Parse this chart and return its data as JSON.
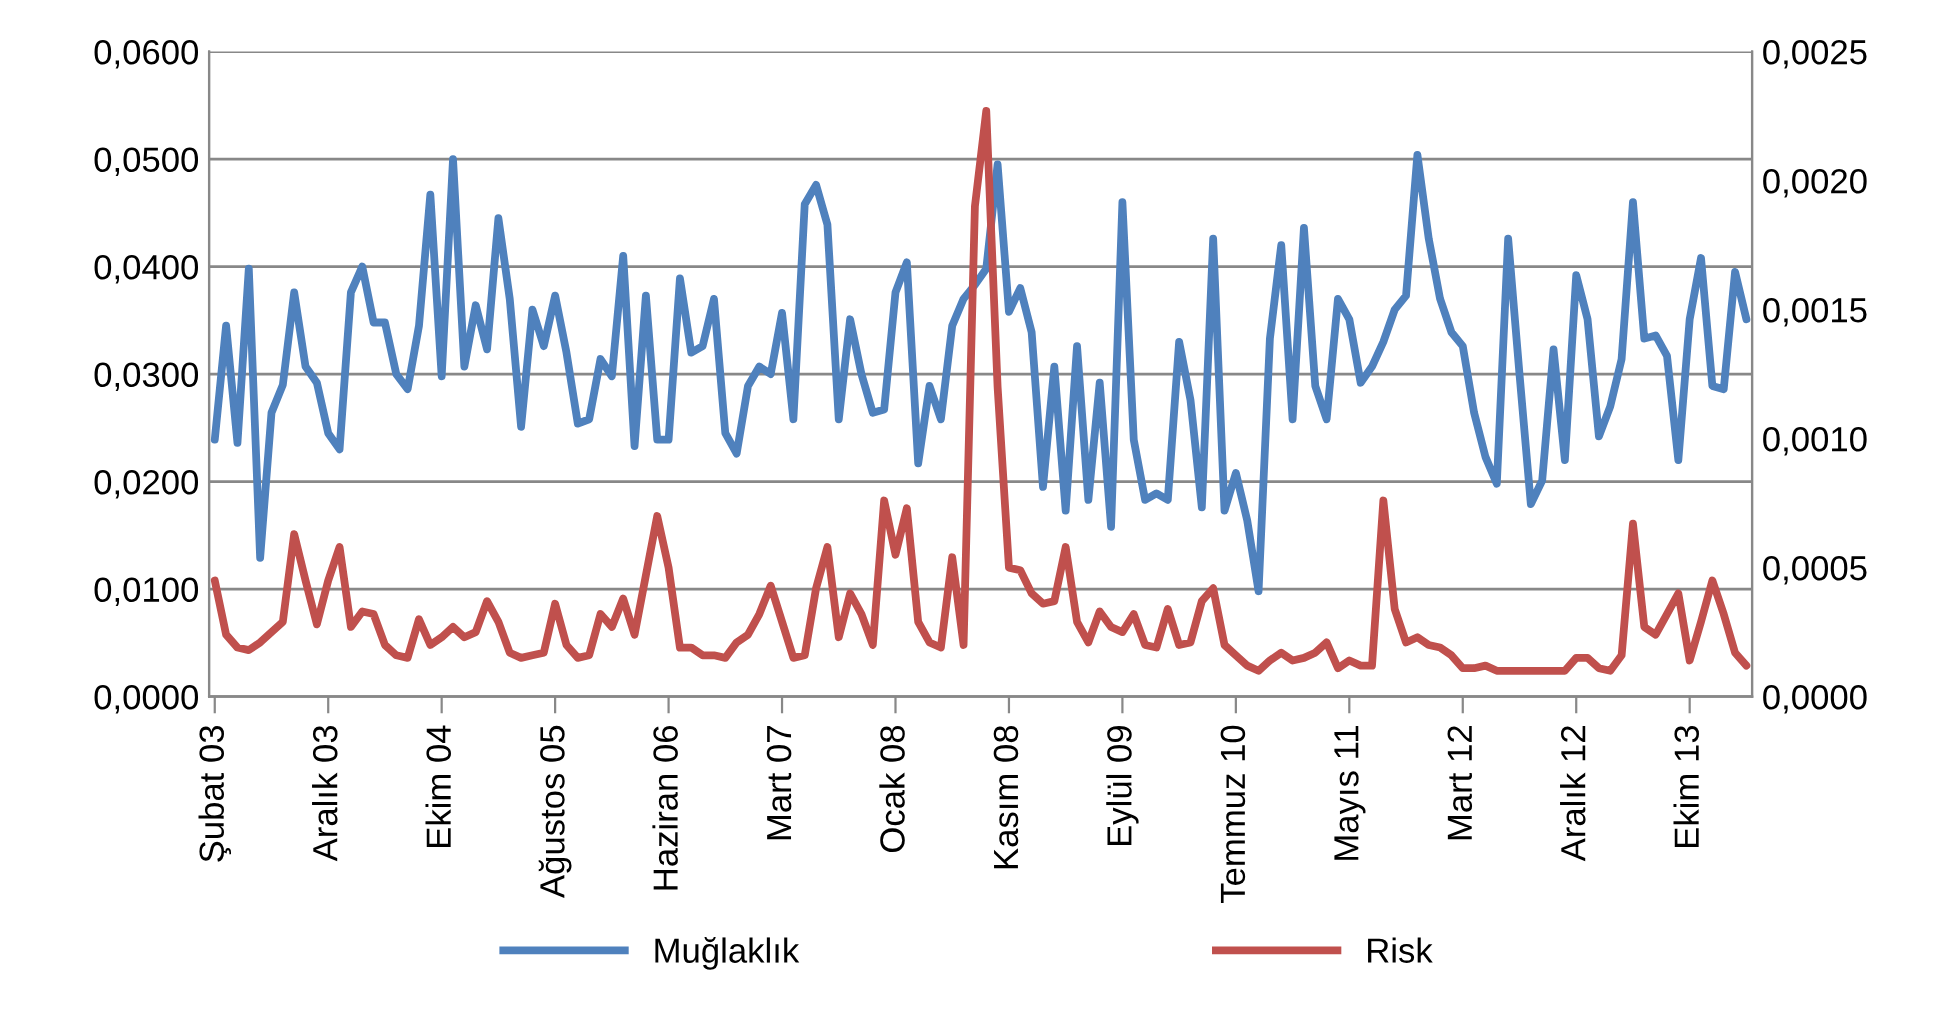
{
  "chart_data": {
    "type": "line",
    "categories": [
      "Şubat 03",
      null,
      null,
      null,
      null,
      null,
      null,
      null,
      null,
      null,
      "Aralık 03",
      null,
      null,
      null,
      null,
      null,
      null,
      null,
      null,
      null,
      "Ekim 04",
      null,
      null,
      null,
      null,
      null,
      null,
      null,
      null,
      null,
      "Ağustos 05",
      null,
      null,
      null,
      null,
      null,
      null,
      null,
      null,
      null,
      "Haziran 06",
      null,
      null,
      null,
      null,
      null,
      null,
      null,
      null,
      null,
      "Mart 07",
      null,
      null,
      null,
      null,
      null,
      null,
      null,
      null,
      null,
      "Ocak 08",
      null,
      null,
      null,
      null,
      null,
      null,
      null,
      null,
      null,
      "Kasım 08",
      null,
      null,
      null,
      null,
      null,
      null,
      null,
      null,
      null,
      "Eylül 09",
      null,
      null,
      null,
      null,
      null,
      null,
      null,
      null,
      null,
      "Temmuz 10",
      null,
      null,
      null,
      null,
      null,
      null,
      null,
      null,
      null,
      "Mayıs 11",
      null,
      null,
      null,
      null,
      null,
      null,
      null,
      null,
      null,
      "Mart 12",
      null,
      null,
      null,
      null,
      null,
      null,
      null,
      null,
      null,
      "Aralık 12",
      null,
      null,
      null,
      null,
      null,
      null,
      null,
      null,
      null,
      "Ekim 13",
      null,
      null,
      null,
      null,
      null
    ],
    "series": [
      {
        "name": "Muğlaklık",
        "color": "#4f81bd",
        "values": [
          0.0239,
          0.0345,
          0.0236,
          0.0398,
          0.0129,
          0.0264,
          0.029,
          0.0376,
          0.0307,
          0.0292,
          0.0245,
          0.023,
          0.0376,
          0.04,
          0.0348,
          0.0348,
          0.03,
          0.0286,
          0.0345,
          0.0467,
          0.0298,
          0.05,
          0.0307,
          0.0364,
          0.0323,
          0.0445,
          0.037,
          0.0251,
          0.036,
          0.0326,
          0.0373,
          0.032,
          0.0254,
          0.0258,
          0.0314,
          0.0298,
          0.041,
          0.0233,
          0.0373,
          0.0239,
          0.0239,
          0.0389,
          0.032,
          0.0326,
          0.037,
          0.0245,
          0.0226,
          0.0289,
          0.0307,
          0.03,
          0.0357,
          0.0258,
          0.0458,
          0.0476,
          0.0439,
          0.0258,
          0.0351,
          0.03,
          0.0264,
          0.0267,
          0.0376,
          0.0404,
          0.0217,
          0.0289,
          0.0258,
          0.0345,
          0.037,
          0.0383,
          0.0398,
          0.0495,
          0.0358,
          0.038,
          0.0339,
          0.0195,
          0.0307,
          0.0173,
          0.0326,
          0.0183,
          0.0292,
          0.0158,
          0.046,
          0.0239,
          0.0183,
          0.0189,
          0.0183,
          0.033,
          0.0276,
          0.0176,
          0.0426,
          0.0173,
          0.0208,
          0.0164,
          0.0098,
          0.0333,
          0.042,
          0.0258,
          0.0436,
          0.0289,
          0.0258,
          0.037,
          0.0351,
          0.0292,
          0.0307,
          0.033,
          0.036,
          0.0373,
          0.0504,
          0.0426,
          0.037,
          0.0339,
          0.0326,
          0.0264,
          0.0223,
          0.0198,
          0.0426,
          0.03,
          0.0179,
          0.0201,
          0.0323,
          0.022,
          0.0392,
          0.0351,
          0.0242,
          0.027,
          0.0314,
          0.046,
          0.0333,
          0.0336,
          0.0317,
          0.022,
          0.0351,
          0.0408,
          0.0289,
          0.0286,
          0.0395,
          0.0351
        ]
      },
      {
        "name": "Risk",
        "color": "#c0504d",
        "axis": "y2",
        "values": [
          0.00045,
          0.00024,
          0.00019,
          0.00018,
          0.00021,
          0.00025,
          0.00029,
          0.00063,
          0.00045,
          0.00028,
          0.00045,
          0.00058,
          0.00027,
          0.00033,
          0.00032,
          0.0002,
          0.00016,
          0.00015,
          0.0003,
          0.0002,
          0.00023,
          0.00027,
          0.00023,
          0.00025,
          0.00037,
          0.00029,
          0.00017,
          0.00015,
          0.00016,
          0.00017,
          0.00036,
          0.0002,
          0.00015,
          0.00016,
          0.00032,
          0.00027,
          0.00038,
          0.00024,
          0.00047,
          0.0007,
          0.0005,
          0.00019,
          0.00019,
          0.00016,
          0.00016,
          0.00015,
          0.00021,
          0.00024,
          0.00032,
          0.00043,
          0.00029,
          0.00015,
          0.00016,
          0.00042,
          0.00058,
          0.00023,
          0.0004,
          0.00032,
          0.0002,
          0.00076,
          0.00055,
          0.00073,
          0.00029,
          0.00021,
          0.00019,
          0.00054,
          0.0002,
          0.0019,
          0.00227,
          0.0012,
          0.0005,
          0.00049,
          0.0004,
          0.00036,
          0.00037,
          0.00058,
          0.00029,
          0.00021,
          0.00033,
          0.00027,
          0.00025,
          0.00032,
          0.0002,
          0.00019,
          0.00034,
          0.0002,
          0.00021,
          0.00037,
          0.00042,
          0.0002,
          0.00016,
          0.00012,
          0.0001,
          0.00014,
          0.00017,
          0.00014,
          0.00015,
          0.00017,
          0.00021,
          0.00011,
          0.00014,
          0.00012,
          0.00012,
          0.00076,
          0.00034,
          0.00021,
          0.00023,
          0.0002,
          0.00019,
          0.00016,
          0.00011,
          0.00011,
          0.00012,
          0.0001,
          0.0001,
          0.0001,
          0.0001,
          0.0001,
          0.0001,
          0.0001,
          0.00015,
          0.00015,
          0.00011,
          0.0001,
          0.00016,
          0.00067,
          0.00027,
          0.00024,
          0.00032,
          0.0004,
          0.00014,
          0.00029,
          0.00045,
          0.00032,
          0.00017,
          0.00012
        ]
      }
    ],
    "ylim": [
      0,
      0.06
    ],
    "yticks": [
      {
        "value": 0,
        "label": "0,0000"
      },
      {
        "value": 0.01,
        "label": "0,0100"
      },
      {
        "value": 0.02,
        "label": "0,0200"
      },
      {
        "value": 0.03,
        "label": "0,0300"
      },
      {
        "value": 0.04,
        "label": "0,0400"
      },
      {
        "value": 0.05,
        "label": "0,0500"
      },
      {
        "value": 0.06,
        "label": "0,0600"
      }
    ],
    "y2lim": [
      0,
      0.0025
    ],
    "y2ticks": [
      {
        "value": 0,
        "label": "0,0000"
      },
      {
        "value": 0.0005,
        "label": "0,0005"
      },
      {
        "value": 0.001,
        "label": "0,0010"
      },
      {
        "value": 0.0015,
        "label": "0,0015"
      },
      {
        "value": 0.002,
        "label": "0,0020"
      },
      {
        "value": 0.0025,
        "label": "0,0025"
      }
    ],
    "grid": "y",
    "legend": "bottom",
    "marker": "none",
    "line_style": "solid"
  }
}
